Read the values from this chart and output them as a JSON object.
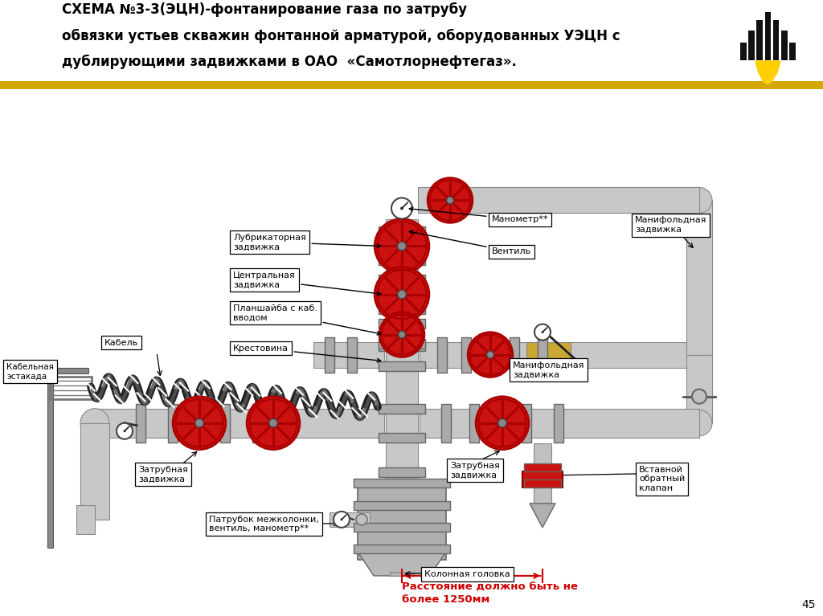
{
  "title_line1": "СХЕМА №3-3(ЭЦН)-фонтанирование газа по затрубу",
  "title_line2": "обвязки устьев скважин фонтанной арматурой, оборудованных УЭЦН с",
  "title_line3": "дублирующими задвижками в ОАО  «Самотлорнефтегаз».",
  "page_number": "45",
  "lbl_lubricator": "Лубрикаторная\nзадвижка",
  "lbl_central": "Центральная\nзадвижка",
  "lbl_planshayba": "Планшайба с каб.\nвводом",
  "lbl_krestovina": "Крестовина",
  "lbl_kabel": "Кабель",
  "lbl_kabelnaya": "Кабельная\nэстакада",
  "lbl_manometr": "Манометр**",
  "lbl_ventil": "Вентиль",
  "lbl_manifold_top": "Манифольдная\nзадвижка",
  "lbl_manifold_mid": "Манифольдная\nзадвижка",
  "lbl_zatrubnaya_left": "Затрубная\nзадвижка",
  "lbl_zatrubnaya_right": "Затрубная\nзадвижка",
  "lbl_patrub": "Патрубок межколонки,\nвентиль, манометр**",
  "lbl_kolonka": "Колонная головка",
  "lbl_vstavnoy": "Вставной\nобратный\nклапан",
  "lbl_distance": "Расстояние должно быть не\nболее 1250мм",
  "pipe_color": "#c8c8c8",
  "pipe_color2": "#d0d0d0",
  "pipe_edge": "#888888",
  "valve_red": "#cc1111",
  "valve_dark": "#aa0000",
  "flange_color": "#aaaaaa",
  "flange_edge": "#666666",
  "gold_color": "#d4a800",
  "red_text": "#cc0000",
  "bg_white": "#ffffff",
  "bg_gray": "#f2f2f2",
  "hub_color": "#999999",
  "brass_color": "#c8a832"
}
